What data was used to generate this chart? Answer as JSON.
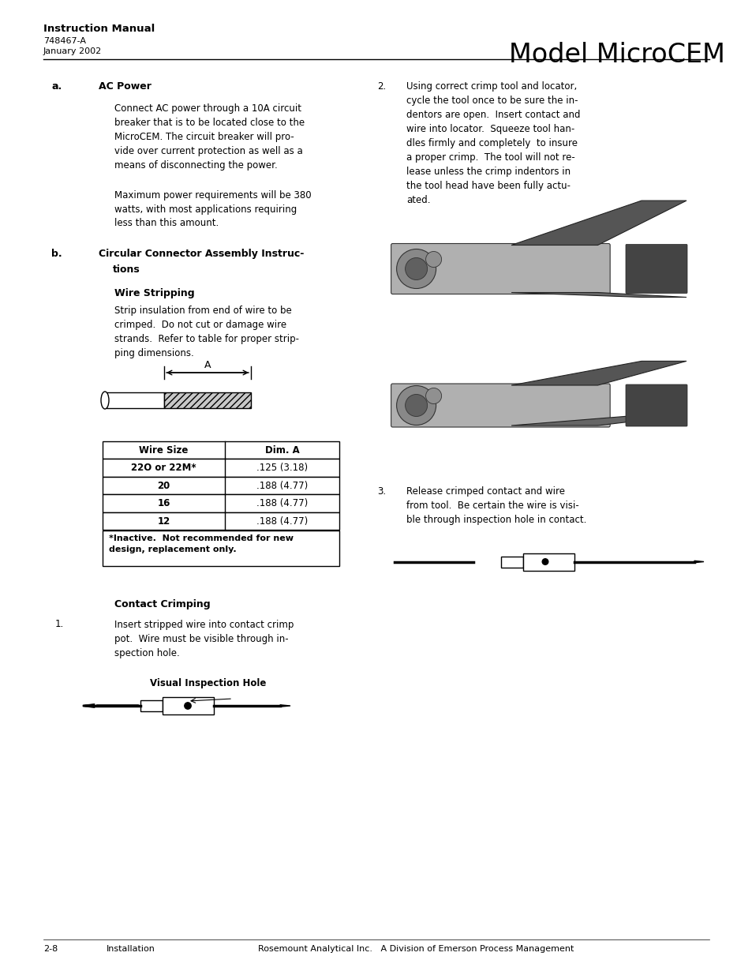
{
  "page_width": 9.54,
  "page_height": 12.35,
  "bg_color": "#ffffff",
  "header": {
    "manual_title": "Instruction Manual",
    "manual_subtitle1": "748467-A",
    "manual_subtitle2": "January 2002",
    "model_title": "Model MicroCEM"
  },
  "footer": {
    "left": "2-8",
    "center_left": "Installation",
    "center_right": "Rosemount Analytical Inc.   A Division of Emerson Process Management"
  },
  "section_a": {
    "label": "a.",
    "title": "AC Power",
    "para1": "Connect AC power through a 10A circuit\nbreaker that is to be located close to the\nMicroCEM. The circuit breaker will pro-\nvide over current protection as well as a\nmeans of disconnecting the power.",
    "para2": "Maximum power requirements will be 380\nwatts, with most applications requiring\nless than this amount."
  },
  "section_b": {
    "label": "b.",
    "title_line1": "Circular Connector Assembly Instruc-",
    "title_line2": "tions",
    "wire_title": "Wire Stripping",
    "wire_body": "Strip insulation from end of wire to be\ncrimped.  Do not cut or damage wire\nstrands.  Refer to table for proper strip-\nping dimensions.",
    "table_headers": [
      "Wire Size",
      "Dim. A"
    ],
    "table_rows": [
      [
        "22O or 22M*",
        ".125 (3.18)"
      ],
      [
        "20",
        ".188 (4.77)"
      ],
      [
        "16",
        ".188 (4.77)"
      ],
      [
        "12",
        ".188 (4.77)"
      ]
    ],
    "table_footnote_line1": "*Inactive.  Not recommended for new",
    "table_footnote_line2": "design, replacement only.",
    "contact_title": "Contact Crimping",
    "contact_step1": "Insert stripped wire into contact crimp\npot.  Wire must be visible through in-\nspection hole.",
    "vis_label": "Visual Inspection Hole"
  },
  "right_col": {
    "step2_num": "2.",
    "step2_text": "Using correct crimp tool and locator,\ncycle the tool once to be sure the in-\ndentors are open.  Insert contact and\nwire into locator.  Squeeze tool han-\ndles firmly and completely  to insure\na proper crimp.  The tool will not re-\nlease unless the crimp indentors in\nthe tool head have been fully actu-\nated.",
    "step3_num": "3.",
    "step3_text": "Release crimped contact and wire\nfrom tool.  Be certain the wire is visi-\nble through inspection hole in contact."
  }
}
